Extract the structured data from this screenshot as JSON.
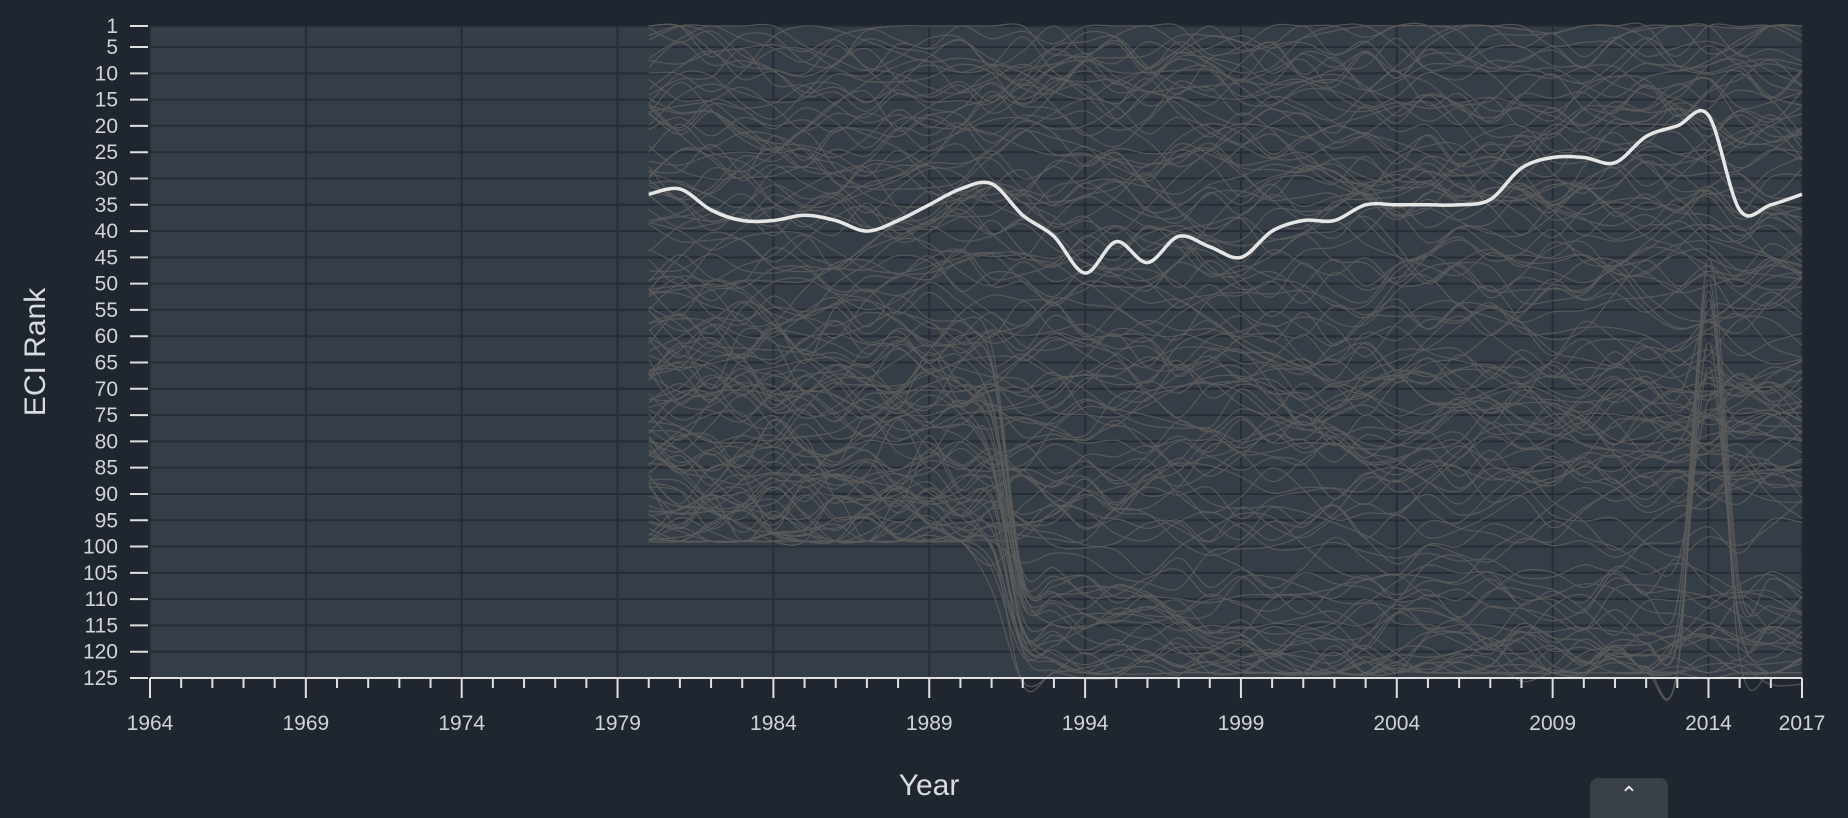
{
  "chart_data": {
    "type": "line",
    "title": "",
    "xlabel": "Year",
    "ylabel": "ECI Rank",
    "x_ticks": [
      "1964",
      "1969",
      "1974",
      "1979",
      "1984",
      "1989",
      "1994",
      "1999",
      "2004",
      "2009",
      "2014",
      "2017"
    ],
    "y_ticks": [
      "1",
      "5",
      "10",
      "15",
      "20",
      "25",
      "30",
      "35",
      "40",
      "45",
      "50",
      "55",
      "60",
      "65",
      "70",
      "75",
      "80",
      "85",
      "90",
      "95",
      "100",
      "105",
      "110",
      "115",
      "120",
      "125"
    ],
    "xlim": [
      1964,
      2017
    ],
    "ylim": [
      1,
      125
    ],
    "y_inverted": true,
    "grid": true,
    "background_series_color": "#5c5c5c",
    "highlight_color": "#e6e6e6",
    "highlight_series": {
      "x": [
        1980,
        1981,
        1982,
        1983,
        1984,
        1985,
        1986,
        1987,
        1988,
        1989,
        1990,
        1991,
        1992,
        1993,
        1994,
        1995,
        1996,
        1997,
        1998,
        1999,
        2000,
        2001,
        2002,
        2003,
        2004,
        2005,
        2006,
        2007,
        2008,
        2009,
        2010,
        2011,
        2012,
        2013,
        2014,
        2015,
        2016,
        2017
      ],
      "values": [
        33,
        32,
        36,
        38,
        38,
        37,
        38,
        40,
        38,
        35,
        32,
        31,
        37,
        41,
        48,
        42,
        46,
        41,
        43,
        45,
        40,
        38,
        38,
        35,
        35,
        35,
        35,
        34,
        28,
        26,
        26,
        27,
        22,
        20,
        18,
        36,
        35,
        33
      ]
    }
  },
  "scroll_top": {
    "icon": "chevron-up-icon",
    "glyph": "⌃"
  }
}
